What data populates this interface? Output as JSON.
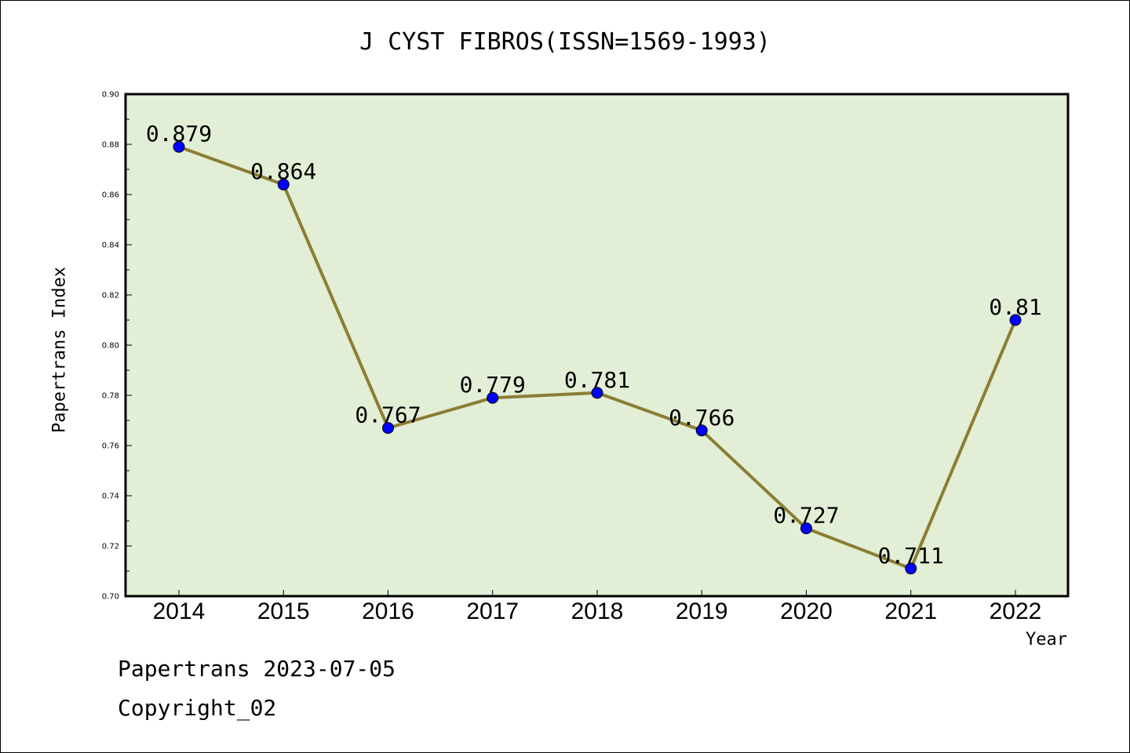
{
  "chart_data": {
    "type": "line",
    "title": "J CYST FIBROS(ISSN=1569-1993)",
    "xlabel": "Year",
    "ylabel": "Papertrans Index",
    "categories": [
      "2014",
      "2015",
      "2016",
      "2017",
      "2018",
      "2019",
      "2020",
      "2021",
      "2022"
    ],
    "values": [
      0.879,
      0.864,
      0.767,
      0.779,
      0.781,
      0.766,
      0.727,
      0.711,
      0.81
    ],
    "data_labels": [
      "0.879",
      "0.864",
      "0.767",
      "0.779",
      "0.781",
      "0.766",
      "0.727",
      "0.711",
      "0.81"
    ],
    "ylim": [
      0.7,
      0.9
    ],
    "y_ticks": [
      "0.70",
      "0.72",
      "0.74",
      "0.76",
      "0.78",
      "0.80",
      "0.82",
      "0.84",
      "0.86",
      "0.88",
      "0.90"
    ],
    "grid": false,
    "colors": {
      "plot_background": "#e2efd6",
      "line": "#8b7d35",
      "marker": "#0000ff"
    }
  },
  "footer": {
    "line1": "Papertrans 2023-07-05",
    "line2": "Copyright_02"
  }
}
